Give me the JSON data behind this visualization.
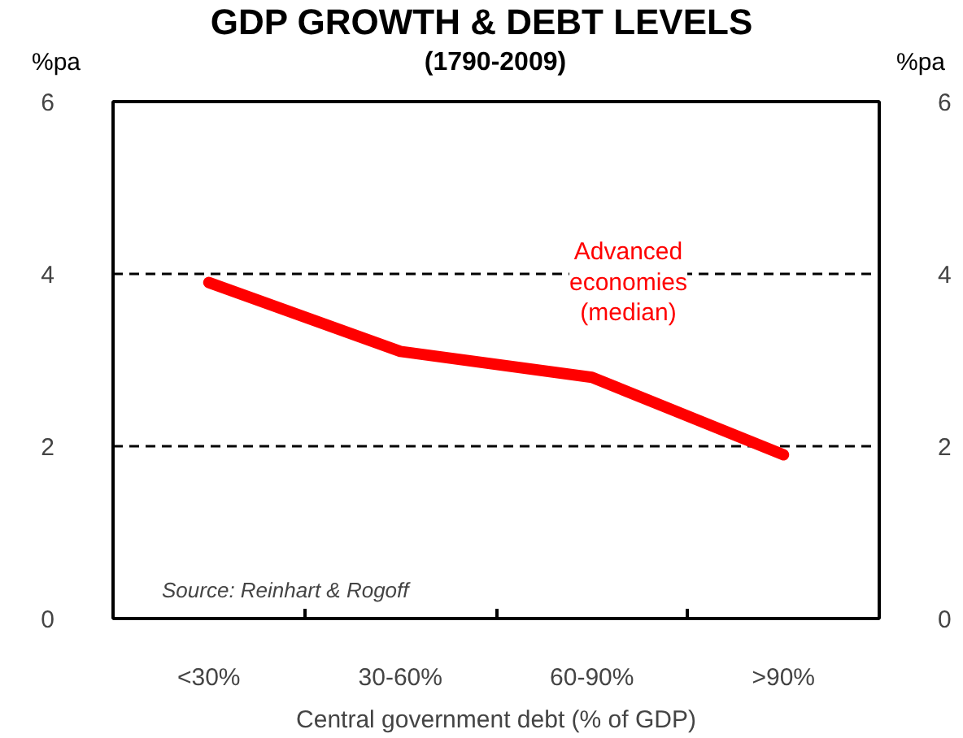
{
  "chart_data": {
    "type": "line",
    "title": "GDP GROWTH & DEBT LEVELS",
    "subtitle": "(1790-2009)",
    "xlabel": "Central government debt (% of GDP)",
    "ylabel": "%pa",
    "y2label": "%pa",
    "categories": [
      "<30%",
      "30-60%",
      "60-90%",
      ">90%"
    ],
    "series": [
      {
        "name": "Advanced economies (median)",
        "color": "#ff0000",
        "values": [
          3.9,
          3.1,
          2.8,
          1.9
        ]
      }
    ],
    "ylim": [
      0,
      6
    ],
    "yticks": [
      0,
      2,
      4,
      6
    ],
    "y2lim": [
      0,
      6
    ],
    "y2ticks": [
      0,
      2,
      4,
      6
    ],
    "grid": "y",
    "line_style": "solid",
    "marker": "none",
    "annotations": [
      "Source: Reinhart & Rogoff"
    ]
  }
}
